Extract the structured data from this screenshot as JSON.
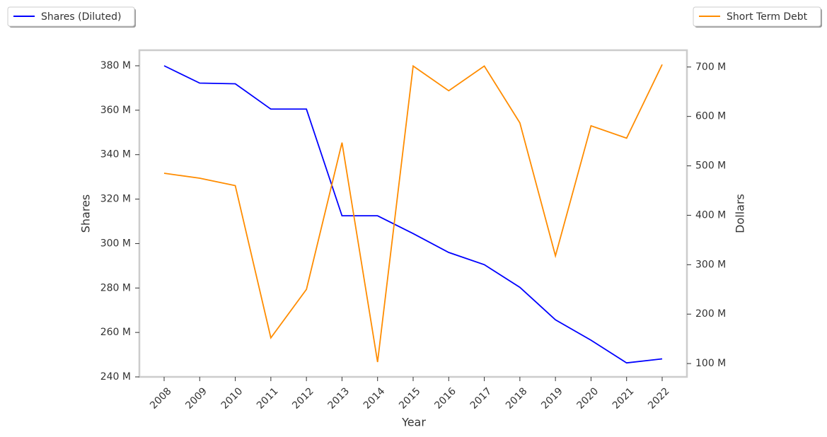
{
  "chart_data": {
    "type": "line",
    "categories": [
      "2008",
      "2009",
      "2010",
      "2011",
      "2012",
      "2013",
      "2014",
      "2015",
      "2016",
      "2017",
      "2018",
      "2019",
      "2020",
      "2021",
      "2022"
    ],
    "xlabel": "Year",
    "ylabel": "Shares",
    "y2label": "Dollars",
    "series": [
      {
        "name": "Shares (Diluted)",
        "color": "#0000ff",
        "values": [
          380,
          372.2,
          371.9,
          360.5,
          360.5,
          312.5,
          312.5,
          304.5,
          296,
          290.5,
          280.3,
          265.7,
          256.5,
          246.3,
          248.1
        ]
      },
      {
        "name": "Short Term Debt",
        "color": "#ff8c00",
        "axis": "y2",
        "values": [
          485,
          475,
          460,
          152,
          250,
          547,
          103,
          702,
          652,
          702,
          587,
          318,
          581,
          556,
          705
        ]
      }
    ],
    "ylim": [
      240,
      387
    ],
    "yticks": [
      {
        "value": 240,
        "label": "240 M"
      },
      {
        "value": 260,
        "label": "260 M"
      },
      {
        "value": 280,
        "label": "280 M"
      },
      {
        "value": 300,
        "label": "300 M"
      },
      {
        "value": 320,
        "label": "320 M"
      },
      {
        "value": 340,
        "label": "340 M"
      },
      {
        "value": 360,
        "label": "360 M"
      },
      {
        "value": 380,
        "label": "380 M"
      }
    ],
    "y2lim": [
      73,
      734
    ],
    "y2ticks": [
      {
        "value": 100,
        "label": "100 M"
      },
      {
        "value": 200,
        "label": "200 M"
      },
      {
        "value": 300,
        "label": "300 M"
      },
      {
        "value": 400,
        "label": "400 M"
      },
      {
        "value": 500,
        "label": "500 M"
      },
      {
        "value": 600,
        "label": "600 M"
      },
      {
        "value": 700,
        "label": "700 M"
      }
    ]
  }
}
